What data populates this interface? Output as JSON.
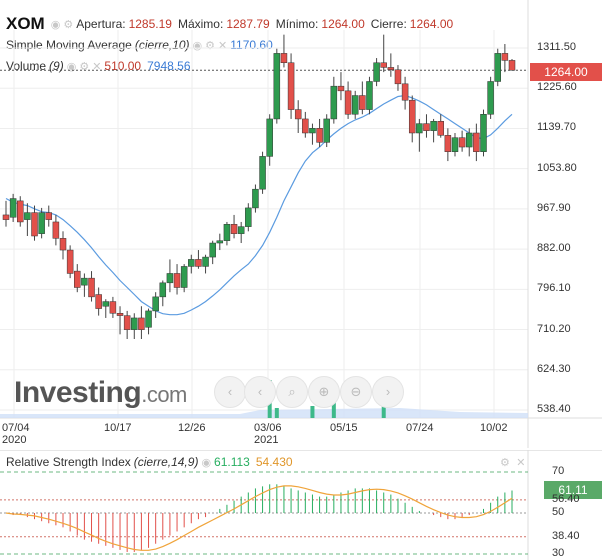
{
  "legend": {
    "symbol": "XOM",
    "apertura_label": "Apertura:",
    "apertura_value": "1285.19",
    "maximo_label": "Máximo:",
    "maximo_value": "1287.79",
    "minimo_label": "Mínimo:",
    "minimo_value": "1264.00",
    "cierre_label": "Cierre:",
    "cierre_value": "1264.00",
    "sma_label": "Simple Moving Average",
    "sma_params": "(cierre,10)",
    "sma_value": "1170.60",
    "volume_label": "Volume",
    "volume_params": "(9)",
    "volume_value1": "510.00",
    "volume_value2": "7948.56",
    "rsi_label": "Relative Strength Index",
    "rsi_params": "(cierre,14,9)",
    "rsi_value1": "61.113",
    "rsi_value2": "54.430"
  },
  "price_tag": "1264.00",
  "rsi_tag": "61.11",
  "watermark": {
    "brand": "Investing",
    "suffix": ".com"
  },
  "colors": {
    "up": "#2e9b4f",
    "down": "#e2504a",
    "sma": "#5b9be0",
    "rsi_line": "#f0a43a",
    "rsi_hist": "#27ae60",
    "grid": "#eeeeee"
  },
  "icons": [
    "eye-icon",
    "gear-icon",
    "close-icon",
    "chevron-left-icon",
    "search-icon",
    "zoom-in-icon",
    "zoom-out-icon"
  ],
  "chart_data": [
    {
      "type": "candlestick",
      "title": "XOM",
      "y_ticks": [
        "1311.50",
        "1225.60",
        "1139.70",
        "1053.80",
        "967.90",
        "882.00",
        "796.10",
        "710.20",
        "624.30",
        "538.40"
      ],
      "x_ticks": [
        {
          "label": "07/04",
          "sub": "2020"
        },
        {
          "label": "10/17",
          "sub": ""
        },
        {
          "label": "12/26",
          "sub": ""
        },
        {
          "label": "03/06",
          "sub": "2021"
        },
        {
          "label": "05/15",
          "sub": ""
        },
        {
          "label": "07/24",
          "sub": ""
        },
        {
          "label": "10/02",
          "sub": ""
        }
      ],
      "ylim": [
        500,
        1330
      ],
      "candles": [
        [
          955,
          985,
          930,
          945
        ],
        [
          950,
          1000,
          940,
          990
        ],
        [
          985,
          995,
          930,
          940
        ],
        [
          945,
          980,
          910,
          960
        ],
        [
          960,
          975,
          900,
          910
        ],
        [
          915,
          970,
          905,
          960
        ],
        [
          960,
          975,
          930,
          945
        ],
        [
          940,
          955,
          890,
          905
        ],
        [
          905,
          920,
          860,
          880
        ],
        [
          880,
          890,
          820,
          830
        ],
        [
          835,
          850,
          790,
          800
        ],
        [
          805,
          830,
          780,
          820
        ],
        [
          820,
          835,
          770,
          780
        ],
        [
          785,
          800,
          740,
          755
        ],
        [
          760,
          775,
          735,
          770
        ],
        [
          770,
          780,
          735,
          745
        ],
        [
          745,
          760,
          700,
          740
        ],
        [
          740,
          750,
          690,
          710
        ],
        [
          710,
          745,
          690,
          735
        ],
        [
          735,
          760,
          690,
          710
        ],
        [
          715,
          755,
          700,
          750
        ],
        [
          750,
          790,
          735,
          780
        ],
        [
          780,
          815,
          760,
          810
        ],
        [
          810,
          860,
          790,
          830
        ],
        [
          830,
          850,
          785,
          800
        ],
        [
          800,
          850,
          790,
          845
        ],
        [
          845,
          870,
          830,
          860
        ],
        [
          860,
          880,
          840,
          845
        ],
        [
          845,
          870,
          830,
          865
        ],
        [
          865,
          900,
          850,
          895
        ],
        [
          895,
          915,
          880,
          900
        ],
        [
          900,
          940,
          890,
          935
        ],
        [
          935,
          955,
          905,
          915
        ],
        [
          915,
          940,
          895,
          930
        ],
        [
          930,
          980,
          920,
          970
        ],
        [
          970,
          1020,
          960,
          1010
        ],
        [
          1010,
          1090,
          1000,
          1080
        ],
        [
          1080,
          1170,
          1060,
          1160
        ],
        [
          1160,
          1310,
          1150,
          1300
        ],
        [
          1300,
          1340,
          1270,
          1280
        ],
        [
          1280,
          1300,
          1160,
          1180
        ],
        [
          1180,
          1200,
          1130,
          1160
        ],
        [
          1160,
          1175,
          1120,
          1130
        ],
        [
          1130,
          1150,
          1105,
          1140
        ],
        [
          1140,
          1160,
          1100,
          1110
        ],
        [
          1110,
          1170,
          1100,
          1160
        ],
        [
          1160,
          1250,
          1150,
          1230
        ],
        [
          1230,
          1260,
          1200,
          1220
        ],
        [
          1220,
          1240,
          1160,
          1170
        ],
        [
          1170,
          1220,
          1160,
          1210
        ],
        [
          1210,
          1240,
          1170,
          1180
        ],
        [
          1180,
          1250,
          1170,
          1240
        ],
        [
          1240,
          1290,
          1230,
          1280
        ],
        [
          1280,
          1340,
          1260,
          1270
        ],
        [
          1270,
          1300,
          1250,
          1265
        ],
        [
          1265,
          1275,
          1220,
          1235
        ],
        [
          1235,
          1250,
          1180,
          1200
        ],
        [
          1200,
          1210,
          1110,
          1130
        ],
        [
          1130,
          1160,
          1090,
          1150
        ],
        [
          1150,
          1170,
          1120,
          1135
        ],
        [
          1135,
          1160,
          1110,
          1155
        ],
        [
          1155,
          1170,
          1120,
          1125
        ],
        [
          1125,
          1140,
          1070,
          1090
        ],
        [
          1090,
          1130,
          1080,
          1120
        ],
        [
          1120,
          1135,
          1090,
          1100
        ],
        [
          1100,
          1140,
          1080,
          1130
        ],
        [
          1130,
          1150,
          1070,
          1090
        ],
        [
          1090,
          1180,
          1080,
          1170
        ],
        [
          1170,
          1250,
          1160,
          1240
        ],
        [
          1240,
          1310,
          1230,
          1300
        ],
        [
          1300,
          1320,
          1260,
          1285
        ],
        [
          1285,
          1288,
          1264,
          1264
        ]
      ],
      "sma": [
        990,
        982,
        978,
        975,
        968,
        962,
        960,
        955,
        945,
        932,
        918,
        902,
        885,
        866,
        848,
        832,
        815,
        800,
        785,
        770,
        760,
        750,
        744,
        742,
        742,
        745,
        752,
        760,
        770,
        782,
        795,
        810,
        825,
        838,
        850,
        868,
        890,
        918,
        950,
        985,
        1015,
        1045,
        1070,
        1088,
        1100,
        1115,
        1128,
        1140,
        1150,
        1158,
        1164,
        1172,
        1182,
        1192,
        1200,
        1208,
        1210,
        1205,
        1198,
        1190,
        1180,
        1170,
        1160,
        1150,
        1140,
        1130,
        1120,
        1118,
        1126,
        1140,
        1156,
        1170
      ]
    },
    {
      "type": "line",
      "title": "Relative Strength Index",
      "y_ticks": [
        "70",
        "61.11",
        "56.40",
        "50",
        "38.40",
        "30"
      ],
      "ylim": [
        30,
        75
      ],
      "series": [
        {
          "name": "61.113",
          "values": [
            50,
            49,
            49,
            48,
            47,
            46,
            45,
            44,
            43,
            41,
            39,
            37,
            36,
            35,
            34,
            33,
            32,
            31,
            31,
            32,
            33,
            35,
            37,
            39,
            41,
            43,
            45,
            47,
            48,
            50,
            52,
            54,
            56,
            58,
            60,
            62,
            63,
            64,
            64,
            63,
            62,
            61,
            60,
            59,
            58,
            58,
            59,
            60,
            61,
            62,
            62,
            62,
            61,
            60,
            59,
            57,
            55,
            53,
            51,
            50,
            49,
            48,
            47,
            47,
            48,
            49,
            50,
            52,
            55,
            58,
            60,
            61
          ]
        }
      ]
    }
  ]
}
